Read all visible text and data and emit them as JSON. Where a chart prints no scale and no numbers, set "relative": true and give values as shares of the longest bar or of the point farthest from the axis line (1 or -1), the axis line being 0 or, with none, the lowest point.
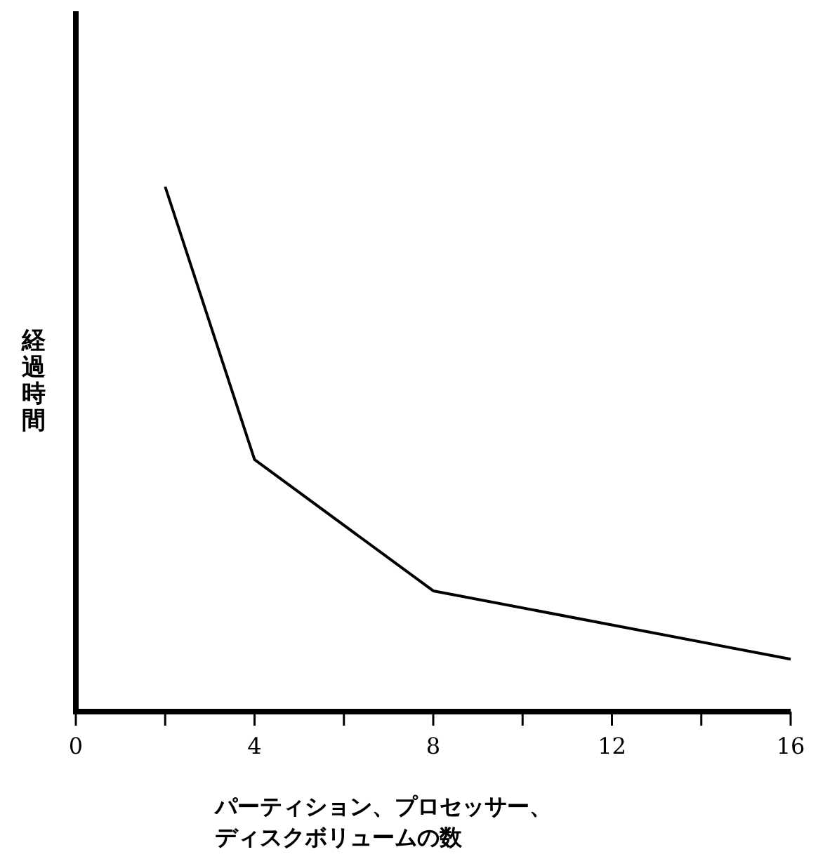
{
  "chart_data": {
    "type": "line",
    "xlabel": "パーティション、プロセッサー、ディスクボリュームの数",
    "ylabel": "経過時間",
    "x": [
      2,
      4,
      8,
      16
    ],
    "relative": true,
    "tick_labels": "x",
    "series": [
      {
        "color": "#000000",
        "values": [
          1,
          0.48,
          0.23,
          0.1
        ]
      }
    ],
    "xlim": [
      0,
      16
    ],
    "xticks": [
      0,
      {
        "value": 2,
        "label": null
      },
      4,
      {
        "value": 6,
        "label": null
      },
      8,
      {
        "value": 10,
        "label": null
      },
      12,
      {
        "value": 14,
        "label": null
      },
      16
    ]
  }
}
